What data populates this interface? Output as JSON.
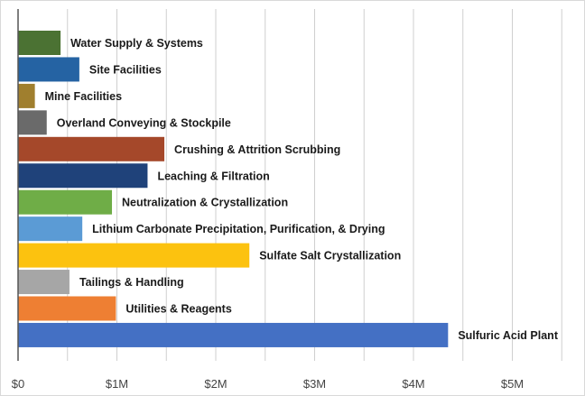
{
  "chart_data": {
    "type": "bar",
    "orientation": "horizontal",
    "title": "",
    "xlabel": "",
    "ylabel": "",
    "xlim": [
      0,
      5.6
    ],
    "x_ticks": [
      {
        "value": 0,
        "label": "$0"
      },
      {
        "value": 1,
        "label": "$1M"
      },
      {
        "value": 2,
        "label": "$2M"
      },
      {
        "value": 3,
        "label": "$3M"
      },
      {
        "value": 4,
        "label": "$4M"
      },
      {
        "value": 5,
        "label": "$5M"
      }
    ],
    "grid": true,
    "value_unit": "USD millions",
    "bars": [
      {
        "category": "Water Supply & Systems",
        "value": 0.43,
        "color": "#4b7233"
      },
      {
        "category": "Site Facilities",
        "value": 0.62,
        "color": "#2563a3"
      },
      {
        "category": "Mine Facilities",
        "value": 0.17,
        "color": "#a07f2e"
      },
      {
        "category": "Overland Conveying & Stockpile",
        "value": 0.29,
        "color": "#6a6a6a"
      },
      {
        "category": "Crushing & Attrition Scrubbing",
        "value": 1.48,
        "color": "#a5482a"
      },
      {
        "category": "Leaching & Filtration",
        "value": 1.31,
        "color": "#1f427a"
      },
      {
        "category": "Neutralization & Crystallization",
        "value": 0.95,
        "color": "#6fad47"
      },
      {
        "category": "Lithium Carbonate Precipitation, Purification, & Drying",
        "value": 0.65,
        "color": "#5b9bd5"
      },
      {
        "category": "Sulfate Salt Crystallization",
        "value": 2.34,
        "color": "#fcc20f"
      },
      {
        "category": "Tailings & Handling",
        "value": 0.52,
        "color": "#a6a6a6"
      },
      {
        "category": "Utilities & Reagents",
        "value": 0.99,
        "color": "#ee7f33"
      },
      {
        "category": "Sulfuric Acid Plant",
        "value": 4.35,
        "color": "#4470c4"
      }
    ]
  }
}
